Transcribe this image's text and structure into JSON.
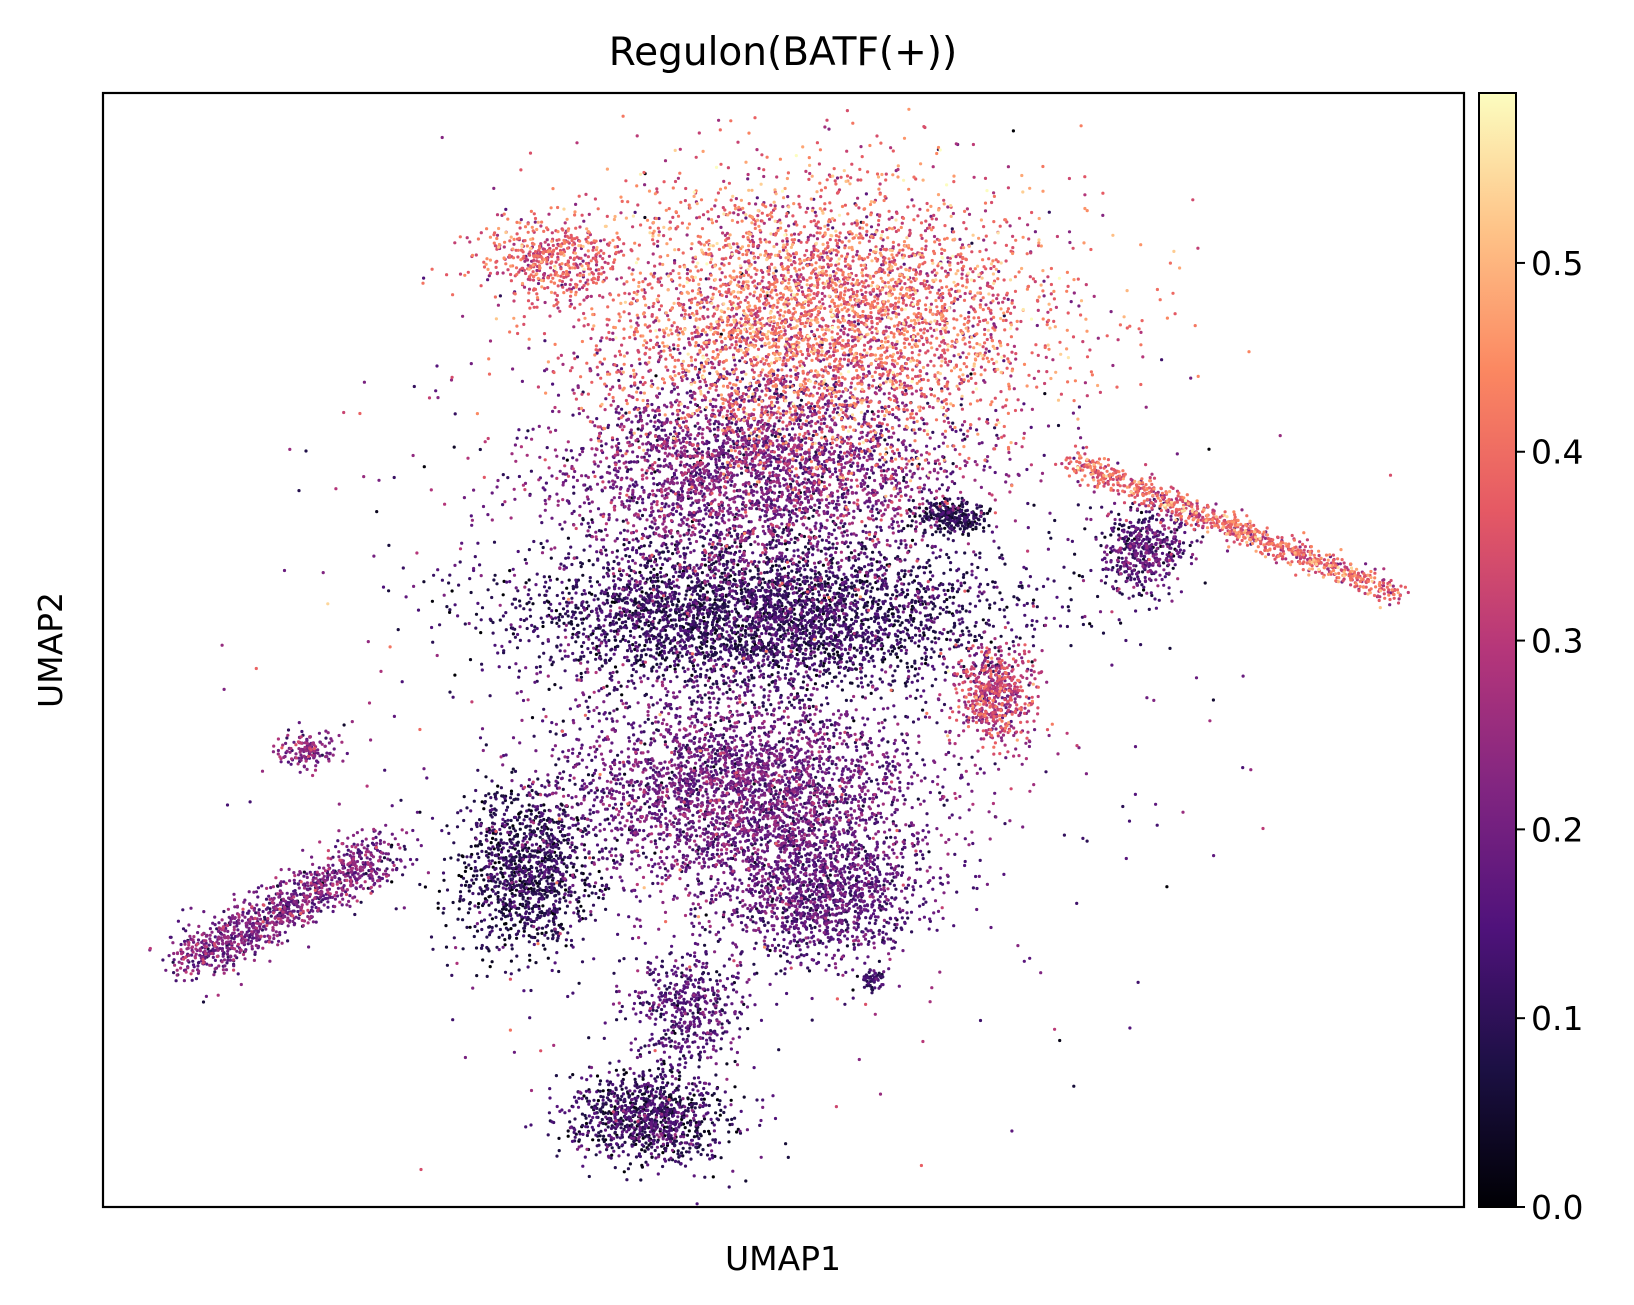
{
  "chart_data": {
    "type": "scatter",
    "title": "Regulon(BATF(+))",
    "xlabel": "UMAP1",
    "ylabel": "UMAP2",
    "xlim": [
      0,
      100
    ],
    "ylim": [
      0,
      100
    ],
    "grid": false,
    "x_ticks": [],
    "y_ticks": [],
    "colormap": "magma",
    "colorbar": {
      "vmin": 0.0,
      "vmax": 0.59,
      "ticks": [
        0.0,
        0.1,
        0.2,
        0.3,
        0.4,
        0.5
      ],
      "tick_labels": [
        "0.0",
        "0.1",
        "0.2",
        "0.3",
        "0.4",
        "0.5"
      ],
      "gradient_stops": [
        "#000004",
        "#1c1044",
        "#4f127b",
        "#812581",
        "#b5367a",
        "#e55964",
        "#fb8761",
        "#fec287",
        "#fcfdbf"
      ]
    },
    "point_color_encodes": "Regulon(BATF(+)) activity",
    "clusters": [
      {
        "name": "top-upper-body",
        "cx": 53,
        "cy": 80,
        "sx": 11,
        "sy": 8,
        "value": 0.38,
        "value_sd": 0.09,
        "n": 4200
      },
      {
        "name": "top-left-lobe",
        "cx": 33,
        "cy": 85,
        "sx": 3.5,
        "sy": 2.5,
        "value": 0.36,
        "value_sd": 0.07,
        "n": 500
      },
      {
        "name": "mid-upper-body",
        "cx": 48,
        "cy": 66,
        "sx": 10,
        "sy": 6,
        "value": 0.2,
        "value_sd": 0.07,
        "n": 3200
      },
      {
        "name": "middle-dark-band",
        "cx": 48,
        "cy": 53,
        "sx": 12,
        "sy": 4.5,
        "value": 0.1,
        "value_sd": 0.05,
        "n": 3800
      },
      {
        "name": "lower-middle-body",
        "cx": 47,
        "cy": 37,
        "sx": 9,
        "sy": 6,
        "value": 0.18,
        "value_sd": 0.06,
        "n": 3300
      },
      {
        "name": "lower-left-dark",
        "cx": 31,
        "cy": 30,
        "sx": 3.5,
        "sy": 5,
        "value": 0.08,
        "value_sd": 0.05,
        "n": 1200
      },
      {
        "name": "lower-right-lobe",
        "cx": 53,
        "cy": 28,
        "sx": 5,
        "sy": 4,
        "value": 0.15,
        "value_sd": 0.05,
        "n": 1200
      },
      {
        "name": "bottom-neck",
        "cx": 43,
        "cy": 18,
        "sx": 3,
        "sy": 3.5,
        "value": 0.14,
        "value_sd": 0.05,
        "n": 500
      },
      {
        "name": "bottom-blob",
        "cx": 40,
        "cy": 8,
        "sx": 4,
        "sy": 2.8,
        "value": 0.1,
        "value_sd": 0.06,
        "n": 1000
      },
      {
        "name": "dark-small-right",
        "cx": 62.5,
        "cy": 62,
        "sx": 1.7,
        "sy": 1.1,
        "value": 0.07,
        "value_sd": 0.04,
        "n": 250
      },
      {
        "name": "right-arm-pink",
        "cx": 65.5,
        "cy": 46,
        "sx": 2,
        "sy": 3,
        "value": 0.3,
        "value_sd": 0.08,
        "n": 600
      },
      {
        "name": "small-isolated-left",
        "cx": 15,
        "cy": 41,
        "sx": 1.5,
        "sy": 1,
        "value": 0.22,
        "value_sd": 0.06,
        "n": 150
      },
      {
        "name": "tiny-lower-right",
        "cx": 56.5,
        "cy": 20.5,
        "sx": 0.6,
        "sy": 0.5,
        "value": 0.12,
        "value_sd": 0.04,
        "n": 60
      },
      {
        "name": "far-right-core",
        "cx": 76.5,
        "cy": 59,
        "sx": 2.3,
        "sy": 2.5,
        "value": 0.15,
        "value_sd": 0.06,
        "n": 500
      }
    ],
    "strand_clusters": [
      {
        "name": "lower-left-strand",
        "x0": 6,
        "y0": 22,
        "x1": 21,
        "y1": 32,
        "width": 2.0,
        "value": 0.2,
        "value_sd": 0.06,
        "n": 1100
      },
      {
        "name": "right-tail",
        "x0": 71,
        "y0": 67,
        "x1": 95,
        "y1": 55,
        "width": 1.0,
        "value": 0.37,
        "value_sd": 0.08,
        "n": 900
      }
    ],
    "scatter_background": {
      "value": 0.22,
      "value_sd": 0.1,
      "n": 800
    }
  }
}
